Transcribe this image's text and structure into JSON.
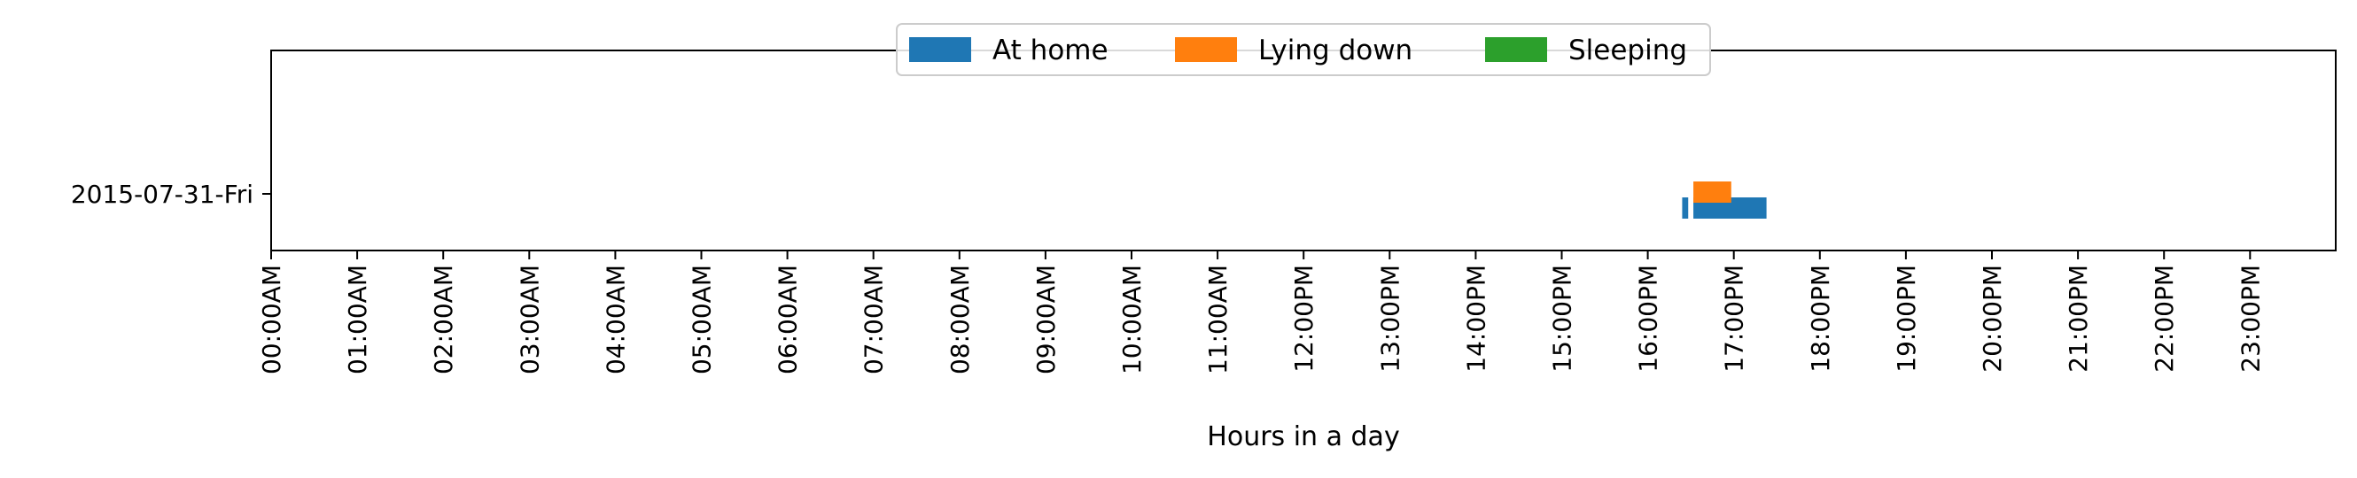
{
  "chart_data": {
    "type": "bar",
    "orientation": "horizontal",
    "xlabel": "Hours in a day",
    "ylabel": "",
    "xlim": [
      0,
      24
    ],
    "x_ticks": [
      "00:00AM",
      "01:00AM",
      "02:00AM",
      "03:00AM",
      "04:00AM",
      "05:00AM",
      "06:00AM",
      "07:00AM",
      "08:00AM",
      "09:00AM",
      "10:00AM",
      "11:00AM",
      "12:00PM",
      "13:00PM",
      "14:00PM",
      "15:00PM",
      "16:00PM",
      "17:00PM",
      "18:00PM",
      "19:00PM",
      "20:00PM",
      "21:00PM",
      "22:00PM",
      "23:00PM"
    ],
    "categories": [
      "2015-07-31-Fri"
    ],
    "legend_position": "top-center",
    "grid": false,
    "series": [
      {
        "name": "At home",
        "color": "#1f77b4",
        "intervals": [
          {
            "category": "2015-07-31-Fri",
            "start": 16.4,
            "end": 16.47
          },
          {
            "category": "2015-07-31-Fri",
            "start": 16.53,
            "end": 17.38
          }
        ]
      },
      {
        "name": "Lying down",
        "color": "#ff7f0e",
        "intervals": [
          {
            "category": "2015-07-31-Fri",
            "start": 16.53,
            "end": 16.97
          }
        ]
      },
      {
        "name": "Sleeping",
        "color": "#2ca02c",
        "intervals": []
      }
    ]
  }
}
